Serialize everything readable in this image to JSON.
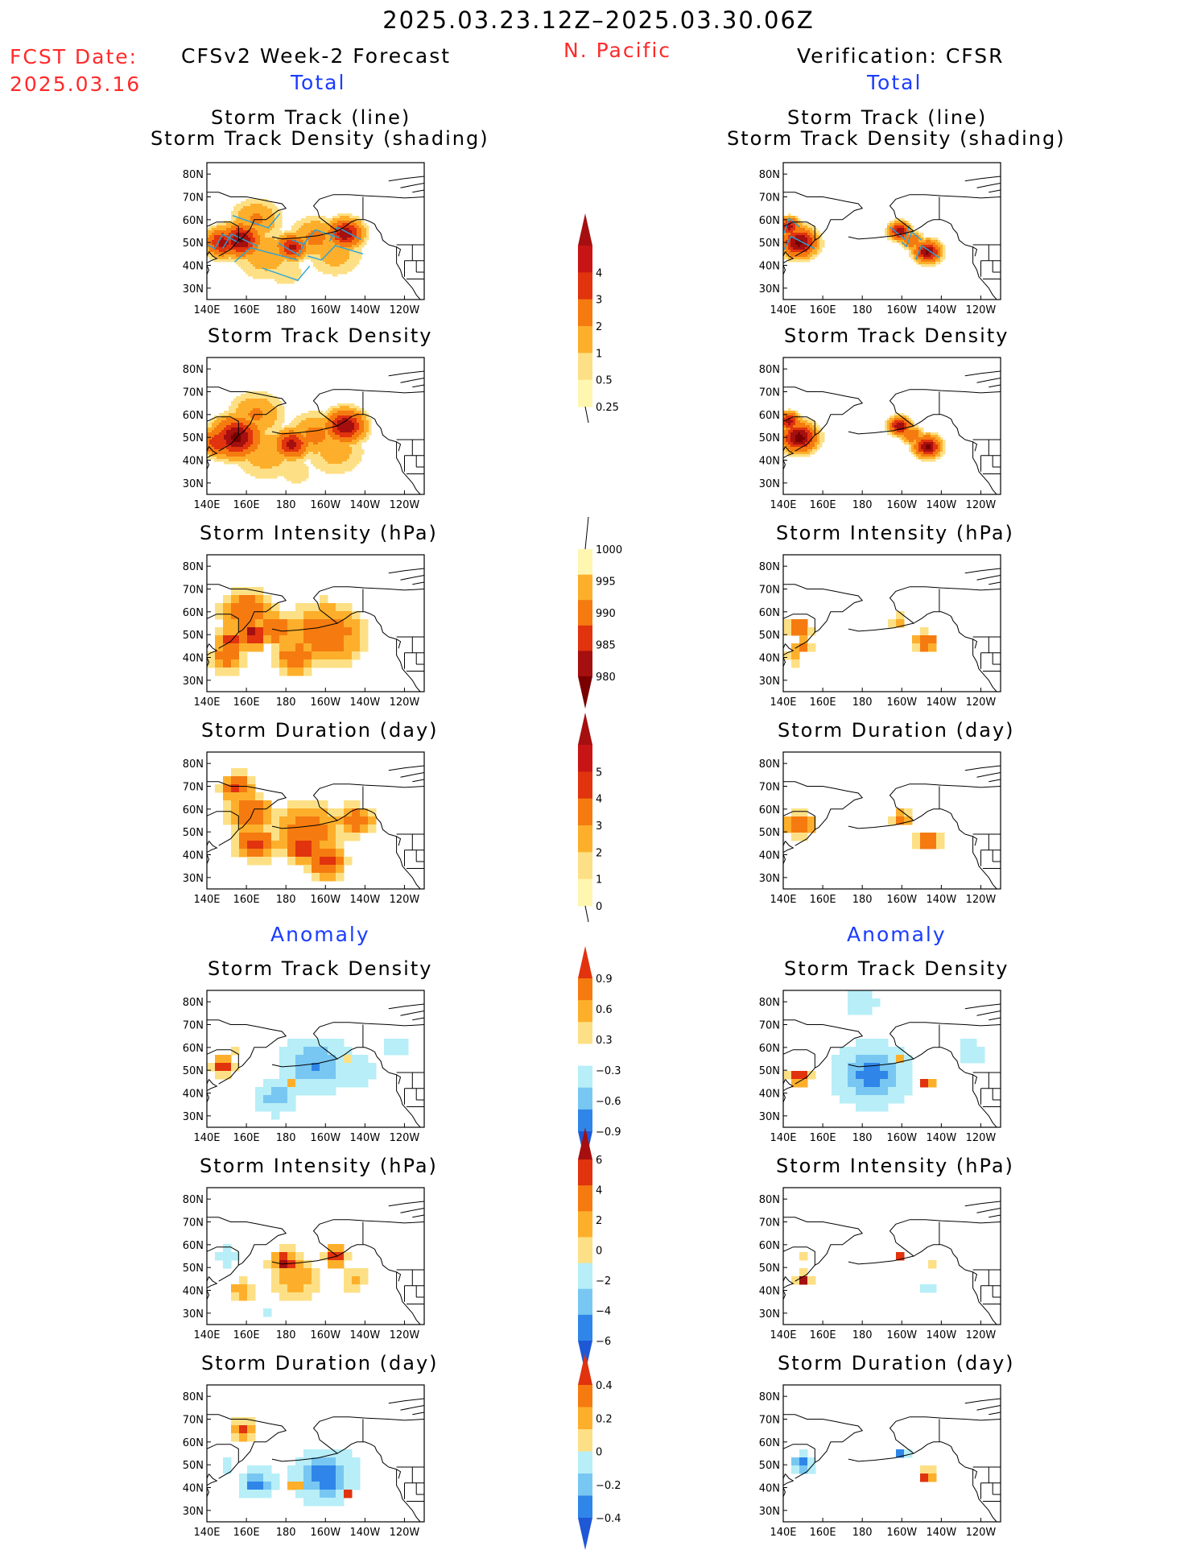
{
  "header": {
    "date_range": "2025.03.23.12Z–2025.03.30.06Z",
    "fcst_label": "FCST Date:",
    "fcst_date": "2025.03.16",
    "left_title": "CFSv2 Week-2 Forecast",
    "region": "N. Pacific",
    "right_title": "Verification: CFSR",
    "total_label": "Total",
    "anomaly_label": "Anomaly"
  },
  "panel_titles": {
    "track_line": "Storm Track (line)",
    "track_shading": "Storm Track Density (shading)",
    "density": "Storm Track Density",
    "intensity": "Storm Intensity (hPa)",
    "duration": "Storm Duration (day)"
  },
  "axes": {
    "x_ticks": [
      "140E",
      "160E",
      "180",
      "160W",
      "140W",
      "120W"
    ],
    "y_ticks": [
      "80N",
      "70N",
      "60N",
      "50N",
      "40N",
      "30N"
    ]
  },
  "colors": {
    "pos": [
      "#fff6b0",
      "#fde085",
      "#fdaf2c",
      "#f57b10",
      "#e0330e",
      "#a50f0f",
      "#7a0000"
    ],
    "neg": [
      "#b7eef7",
      "#78c7f2",
      "#2f86e8",
      "#1e58d6"
    ],
    "track": "#29a3d9"
  },
  "chart_data": {
    "type": "heatmap",
    "title": "2025.03.23.12Z–2025.03.30.06Z",
    "subtitle": "N. Pacific",
    "domain": {
      "lon": [
        140,
        250
      ],
      "lat": [
        25,
        85
      ]
    },
    "colorbars": {
      "density_total": {
        "ticks": [
          "0.25",
          "0.5",
          "1",
          "2",
          "3",
          "4"
        ]
      },
      "intensity_total": {
        "ticks": [
          "1000",
          "995",
          "990",
          "985",
          "980"
        ]
      },
      "duration_total": {
        "ticks": [
          "0",
          "1",
          "2",
          "3",
          "4",
          "5"
        ]
      },
      "density_anomaly": {
        "ticks": [
          "0.9",
          "0.6",
          "0.3",
          "−0.3",
          "−0.6",
          "−0.9"
        ]
      },
      "intensity_anomaly": {
        "ticks": [
          "6",
          "4",
          "2",
          "0",
          "−2",
          "−4",
          "−6"
        ]
      },
      "duration_anomaly": {
        "ticks": [
          "0.4",
          "0.2",
          "0",
          "−0.2",
          "−0.4"
        ]
      }
    },
    "fields": {
      "fc_track": [
        {
          "lon": 157,
          "lat": 51,
          "r": 9,
          "v": 4.2
        },
        {
          "lon": 148,
          "lat": 50,
          "r": 8,
          "v": 3.4
        },
        {
          "lon": 183,
          "lat": 48,
          "r": 7,
          "v": 3.3
        },
        {
          "lon": 210,
          "lat": 54,
          "r": 8,
          "v": 3.8
        },
        {
          "lon": 195,
          "lat": 52,
          "r": 12,
          "v": 1.2
        },
        {
          "lon": 165,
          "lat": 60,
          "r": 12,
          "v": 1.1
        },
        {
          "lon": 170,
          "lat": 45,
          "r": 16,
          "v": 0.8
        },
        {
          "lon": 205,
          "lat": 45,
          "r": 14,
          "v": 0.7
        },
        {
          "lon": 180,
          "lat": 37,
          "r": 12,
          "v": 0.4
        }
      ],
      "fc_density": [
        {
          "lon": 155,
          "lat": 50,
          "r": 11,
          "v": 4.3
        },
        {
          "lon": 146,
          "lat": 48,
          "r": 8,
          "v": 3.0
        },
        {
          "lon": 183,
          "lat": 47,
          "r": 8,
          "v": 3.4
        },
        {
          "lon": 210,
          "lat": 55,
          "r": 9,
          "v": 4.0
        },
        {
          "lon": 195,
          "lat": 51,
          "r": 13,
          "v": 1.2
        },
        {
          "lon": 165,
          "lat": 60,
          "r": 13,
          "v": 1.1
        },
        {
          "lon": 170,
          "lat": 44,
          "r": 17,
          "v": 0.8
        },
        {
          "lon": 205,
          "lat": 44,
          "r": 15,
          "v": 0.7
        },
        {
          "lon": 185,
          "lat": 35,
          "r": 11,
          "v": 0.4
        }
      ],
      "fc_intensity": [
        {
          "lon": 163,
          "lat": 50,
          "r": 8,
          "v": 3.4
        },
        {
          "lon": 152,
          "lat": 47,
          "r": 8,
          "v": 2.4
        },
        {
          "lon": 175,
          "lat": 52,
          "r": 10,
          "v": 2.0
        },
        {
          "lon": 200,
          "lat": 50,
          "r": 20,
          "v": 1.7
        },
        {
          "lon": 160,
          "lat": 60,
          "r": 14,
          "v": 1.8
        },
        {
          "lon": 150,
          "lat": 40,
          "r": 9,
          "v": 1.6
        },
        {
          "lon": 185,
          "lat": 40,
          "r": 12,
          "v": 1.6
        }
      ],
      "fc_duration": [
        {
          "lon": 162,
          "lat": 58,
          "r": 12,
          "v": 1.8
        },
        {
          "lon": 190,
          "lat": 50,
          "r": 18,
          "v": 1.6
        },
        {
          "lon": 215,
          "lat": 55,
          "r": 10,
          "v": 1.6
        },
        {
          "lon": 165,
          "lat": 45,
          "r": 10,
          "v": 2.7
        },
        {
          "lon": 190,
          "lat": 43,
          "r": 10,
          "v": 2.7
        },
        {
          "lon": 155,
          "lat": 70,
          "r": 8,
          "v": 2.5
        },
        {
          "lon": 200,
          "lat": 37,
          "r": 10,
          "v": 2.5
        }
      ],
      "vf_track": [
        {
          "lon": 148,
          "lat": 50,
          "r": 8,
          "v": 4.4
        },
        {
          "lon": 143,
          "lat": 57,
          "r": 5,
          "v": 3.5
        },
        {
          "lon": 199,
          "lat": 55,
          "r": 5,
          "v": 3.8
        },
        {
          "lon": 213,
          "lat": 46,
          "r": 6,
          "v": 4.2
        },
        {
          "lon": 205,
          "lat": 51,
          "r": 5,
          "v": 2.0
        }
      ],
      "vf_density": [
        {
          "lon": 148,
          "lat": 50,
          "r": 8,
          "v": 4.5
        },
        {
          "lon": 143,
          "lat": 57,
          "r": 5,
          "v": 3.5
        },
        {
          "lon": 199,
          "lat": 55,
          "r": 5,
          "v": 3.9
        },
        {
          "lon": 213,
          "lat": 46,
          "r": 6,
          "v": 4.3
        },
        {
          "lon": 205,
          "lat": 51,
          "r": 5,
          "v": 2.0
        }
      ],
      "vf_intensity": [
        {
          "lon": 148,
          "lat": 53,
          "r": 6,
          "v": 2.0
        },
        {
          "lon": 150,
          "lat": 45,
          "r": 5,
          "v": 1.5
        },
        {
          "lon": 198,
          "lat": 56,
          "r": 4,
          "v": 1.0
        },
        {
          "lon": 212,
          "lat": 47,
          "r": 6,
          "v": 2.2
        },
        {
          "lon": 145,
          "lat": 40,
          "r": 4,
          "v": 1.2
        }
      ],
      "vf_duration": [
        {
          "lon": 148,
          "lat": 53,
          "r": 8,
          "v": 1.7
        },
        {
          "lon": 200,
          "lat": 56,
          "r": 5,
          "v": 1.6
        },
        {
          "lon": 213,
          "lat": 46,
          "r": 6,
          "v": 2.4
        }
      ],
      "fc_density_anom": [
        {
          "lon": 195,
          "lat": 52,
          "r": 22,
          "v": -2.6
        },
        {
          "lon": 175,
          "lat": 38,
          "r": 14,
          "v": -2.3
        },
        {
          "lon": 215,
          "lat": 50,
          "r": 16,
          "v": -1.5
        },
        {
          "lon": 235,
          "lat": 60,
          "r": 12,
          "v": -1.2
        },
        {
          "lon": 148,
          "lat": 52,
          "r": 8,
          "v": 3.0
        },
        {
          "lon": 183,
          "lat": 45,
          "r": 4,
          "v": 2.4
        },
        {
          "lon": 210,
          "lat": 54,
          "r": 4,
          "v": 2.0
        },
        {
          "lon": 155,
          "lat": 57,
          "r": 4,
          "v": 1.8
        }
      ],
      "vf_density_anom": [
        {
          "lon": 185,
          "lat": 48,
          "r": 24,
          "v": -2.8
        },
        {
          "lon": 180,
          "lat": 80,
          "r": 16,
          "v": -1.2
        },
        {
          "lon": 235,
          "lat": 58,
          "r": 12,
          "v": -1.3
        },
        {
          "lon": 148,
          "lat": 47,
          "r": 7,
          "v": 3.2
        },
        {
          "lon": 213,
          "lat": 44,
          "r": 5,
          "v": 3.1
        },
        {
          "lon": 199,
          "lat": 55,
          "r": 3,
          "v": 2.4
        }
      ],
      "fc_intensity_anom": [
        {
          "lon": 180,
          "lat": 52,
          "r": 10,
          "v": 3.7
        },
        {
          "lon": 205,
          "lat": 55,
          "r": 8,
          "v": 3.5
        },
        {
          "lon": 185,
          "lat": 45,
          "r": 16,
          "v": 2.2
        },
        {
          "lon": 215,
          "lat": 45,
          "r": 10,
          "v": 1.7
        },
        {
          "lon": 150,
          "lat": 55,
          "r": 8,
          "v": -1.5
        },
        {
          "lon": 158,
          "lat": 40,
          "r": 8,
          "v": 2.4
        },
        {
          "lon": 170,
          "lat": 30,
          "r": 6,
          "v": -1.2
        }
      ],
      "vf_intensity_anom": [
        {
          "lon": 150,
          "lat": 45,
          "r": 5,
          "v": 4.0
        },
        {
          "lon": 150,
          "lat": 55,
          "r": 5,
          "v": 1.2
        },
        {
          "lon": 200,
          "lat": 55,
          "r": 3,
          "v": 4.0
        },
        {
          "lon": 214,
          "lat": 42,
          "r": 4,
          "v": -2.2
        },
        {
          "lon": 215,
          "lat": 50,
          "r": 3,
          "v": 2.0
        }
      ],
      "fc_duration_anom": [
        {
          "lon": 200,
          "lat": 45,
          "r": 20,
          "v": -3.0
        },
        {
          "lon": 165,
          "lat": 42,
          "r": 12,
          "v": -2.8
        },
        {
          "lon": 158,
          "lat": 65,
          "r": 8,
          "v": 3.0
        },
        {
          "lon": 185,
          "lat": 42,
          "r": 5,
          "v": 2.5
        },
        {
          "lon": 210,
          "lat": 38,
          "r": 4,
          "v": 3.3
        },
        {
          "lon": 150,
          "lat": 50,
          "r": 7,
          "v": -1.2
        }
      ],
      "vf_duration_anom": [
        {
          "lon": 150,
          "lat": 50,
          "r": 8,
          "v": -3.0
        },
        {
          "lon": 200,
          "lat": 55,
          "r": 4,
          "v": -3.0
        },
        {
          "lon": 213,
          "lat": 45,
          "r": 6,
          "v": 3.0
        }
      ]
    }
  }
}
